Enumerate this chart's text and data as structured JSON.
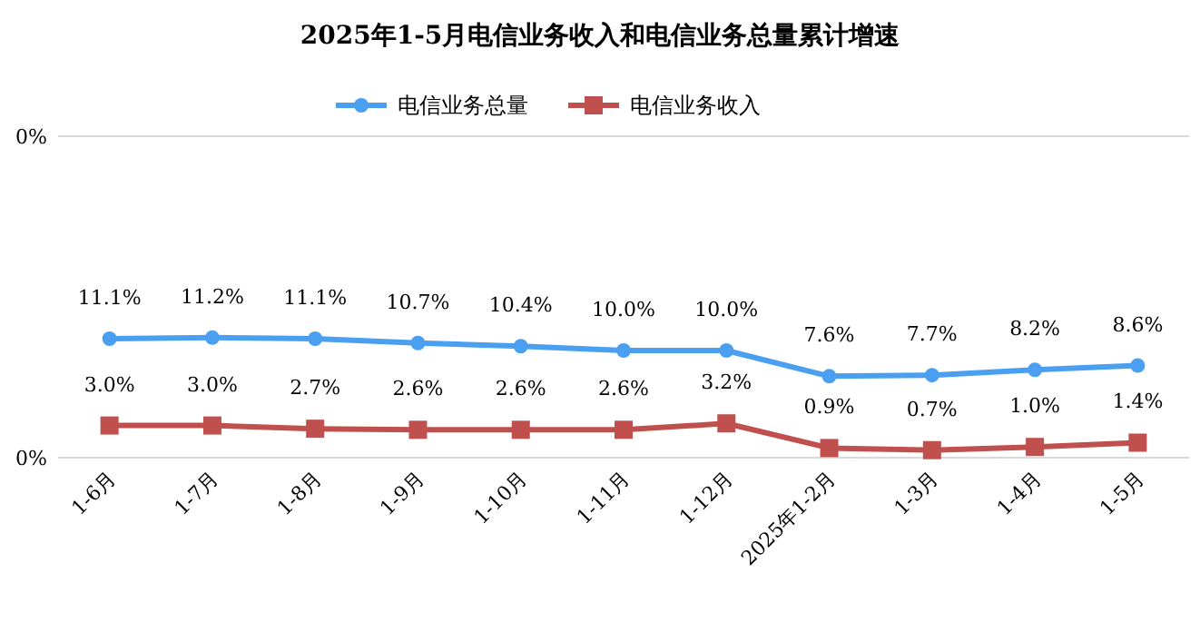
{
  "chart_data": {
    "type": "line",
    "title": "2025年1-5月电信业务收入和电信业务总量累计增速",
    "categories": [
      "1-6月",
      "1-7月",
      "1-8月",
      "1-9月",
      "1-10月",
      "1-11月",
      "1-12月",
      "2025年1-2月",
      "1-3月",
      "1-4月",
      "1-5月"
    ],
    "series": [
      {
        "name": "电信业务总量",
        "color": "#4a9ff0",
        "marker": "circle",
        "values": [
          11.1,
          11.2,
          11.1,
          10.7,
          10.4,
          10.0,
          10.0,
          7.6,
          7.7,
          8.2,
          8.6
        ],
        "value_labels": [
          "11.1%",
          "11.2%",
          "11.1%",
          "10.7%",
          "10.4%",
          "10.0%",
          "10.0%",
          "7.6%",
          "7.7%",
          "8.2%",
          "8.6%"
        ]
      },
      {
        "name": "电信业务收入",
        "color": "#c0504d",
        "marker": "square",
        "values": [
          3.0,
          3.0,
          2.7,
          2.6,
          2.6,
          2.6,
          3.2,
          0.9,
          0.7,
          1.0,
          1.4
        ],
        "value_labels": [
          "3.0%",
          "3.0%",
          "2.7%",
          "2.6%",
          "2.6%",
          "2.6%",
          "3.2%",
          "0.9%",
          "0.7%",
          "1.0%",
          "1.4%"
        ]
      }
    ],
    "ylim": [
      0,
      30
    ],
    "annotations": [
      "0%",
      "0%"
    ],
    "legend": "top"
  }
}
